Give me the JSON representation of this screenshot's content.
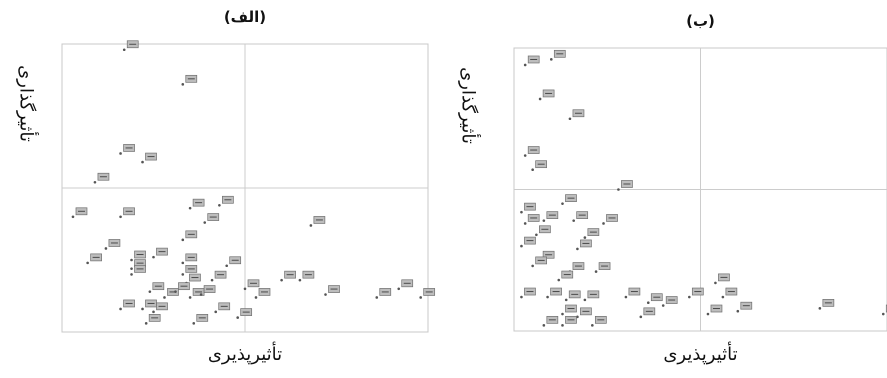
{
  "chart_data": [
    {
      "type": "scatter",
      "panel_label": "(الف)",
      "xlabel": "تأثیرپذیری",
      "ylabel": "تأثیرگذاری",
      "xlim": [
        0,
        100
      ],
      "ylim": [
        0,
        100
      ],
      "quadrant_split": {
        "x": 50,
        "y": 50
      },
      "grid": false,
      "points": [
        {
          "x": 17,
          "y": 98
        },
        {
          "x": 33,
          "y": 86
        },
        {
          "x": 16,
          "y": 62
        },
        {
          "x": 22,
          "y": 59
        },
        {
          "x": 9,
          "y": 52
        },
        {
          "x": 3,
          "y": 40
        },
        {
          "x": 16,
          "y": 40
        },
        {
          "x": 35,
          "y": 43
        },
        {
          "x": 43,
          "y": 44
        },
        {
          "x": 39,
          "y": 38
        },
        {
          "x": 68,
          "y": 37
        },
        {
          "x": 33,
          "y": 32
        },
        {
          "x": 12,
          "y": 29
        },
        {
          "x": 25,
          "y": 26
        },
        {
          "x": 7,
          "y": 24
        },
        {
          "x": 19,
          "y": 25
        },
        {
          "x": 19,
          "y": 22
        },
        {
          "x": 19,
          "y": 20
        },
        {
          "x": 33,
          "y": 24
        },
        {
          "x": 33,
          "y": 20
        },
        {
          "x": 45,
          "y": 23
        },
        {
          "x": 34,
          "y": 17
        },
        {
          "x": 41,
          "y": 18
        },
        {
          "x": 50,
          "y": 15
        },
        {
          "x": 60,
          "y": 18
        },
        {
          "x": 65,
          "y": 18
        },
        {
          "x": 24,
          "y": 14
        },
        {
          "x": 28,
          "y": 12
        },
        {
          "x": 31,
          "y": 14
        },
        {
          "x": 35,
          "y": 12
        },
        {
          "x": 38,
          "y": 13
        },
        {
          "x": 16,
          "y": 8
        },
        {
          "x": 22,
          "y": 8
        },
        {
          "x": 25,
          "y": 7
        },
        {
          "x": 42,
          "y": 7
        },
        {
          "x": 53,
          "y": 12
        },
        {
          "x": 72,
          "y": 13
        },
        {
          "x": 86,
          "y": 12
        },
        {
          "x": 92,
          "y": 15
        },
        {
          "x": 98,
          "y": 12
        },
        {
          "x": 48,
          "y": 5
        },
        {
          "x": 36,
          "y": 3
        },
        {
          "x": 23,
          "y": 3
        }
      ]
    },
    {
      "type": "scatter",
      "panel_label": "(ب)",
      "xlabel": "تأثیرپذیری",
      "ylabel": "تأثیرگذاری",
      "xlim": [
        0,
        100
      ],
      "ylim": [
        0,
        100
      ],
      "quadrant_split": {
        "x": 50,
        "y": 50
      },
      "grid": false,
      "points": [
        {
          "x": 3,
          "y": 94
        },
        {
          "x": 10,
          "y": 96
        },
        {
          "x": 7,
          "y": 82
        },
        {
          "x": 15,
          "y": 75
        },
        {
          "x": 5,
          "y": 57
        },
        {
          "x": 3,
          "y": 62
        },
        {
          "x": 28,
          "y": 50
        },
        {
          "x": 13,
          "y": 45
        },
        {
          "x": 2,
          "y": 42
        },
        {
          "x": 8,
          "y": 39
        },
        {
          "x": 3,
          "y": 38
        },
        {
          "x": 6,
          "y": 34
        },
        {
          "x": 2,
          "y": 30
        },
        {
          "x": 16,
          "y": 39
        },
        {
          "x": 24,
          "y": 38
        },
        {
          "x": 19,
          "y": 33
        },
        {
          "x": 17,
          "y": 29
        },
        {
          "x": 7,
          "y": 25
        },
        {
          "x": 5,
          "y": 23
        },
        {
          "x": 15,
          "y": 21
        },
        {
          "x": 22,
          "y": 21
        },
        {
          "x": 12,
          "y": 18
        },
        {
          "x": 54,
          "y": 17
        },
        {
          "x": 2,
          "y": 12
        },
        {
          "x": 9,
          "y": 12
        },
        {
          "x": 14,
          "y": 11
        },
        {
          "x": 19,
          "y": 11
        },
        {
          "x": 30,
          "y": 12
        },
        {
          "x": 36,
          "y": 10
        },
        {
          "x": 40,
          "y": 9
        },
        {
          "x": 47,
          "y": 12
        },
        {
          "x": 56,
          "y": 12
        },
        {
          "x": 13,
          "y": 6
        },
        {
          "x": 17,
          "y": 5
        },
        {
          "x": 8,
          "y": 2
        },
        {
          "x": 13,
          "y": 2
        },
        {
          "x": 21,
          "y": 2
        },
        {
          "x": 34,
          "y": 5
        },
        {
          "x": 52,
          "y": 6
        },
        {
          "x": 60,
          "y": 7
        },
        {
          "x": 82,
          "y": 8
        },
        {
          "x": 99,
          "y": 6
        }
      ]
    }
  ]
}
